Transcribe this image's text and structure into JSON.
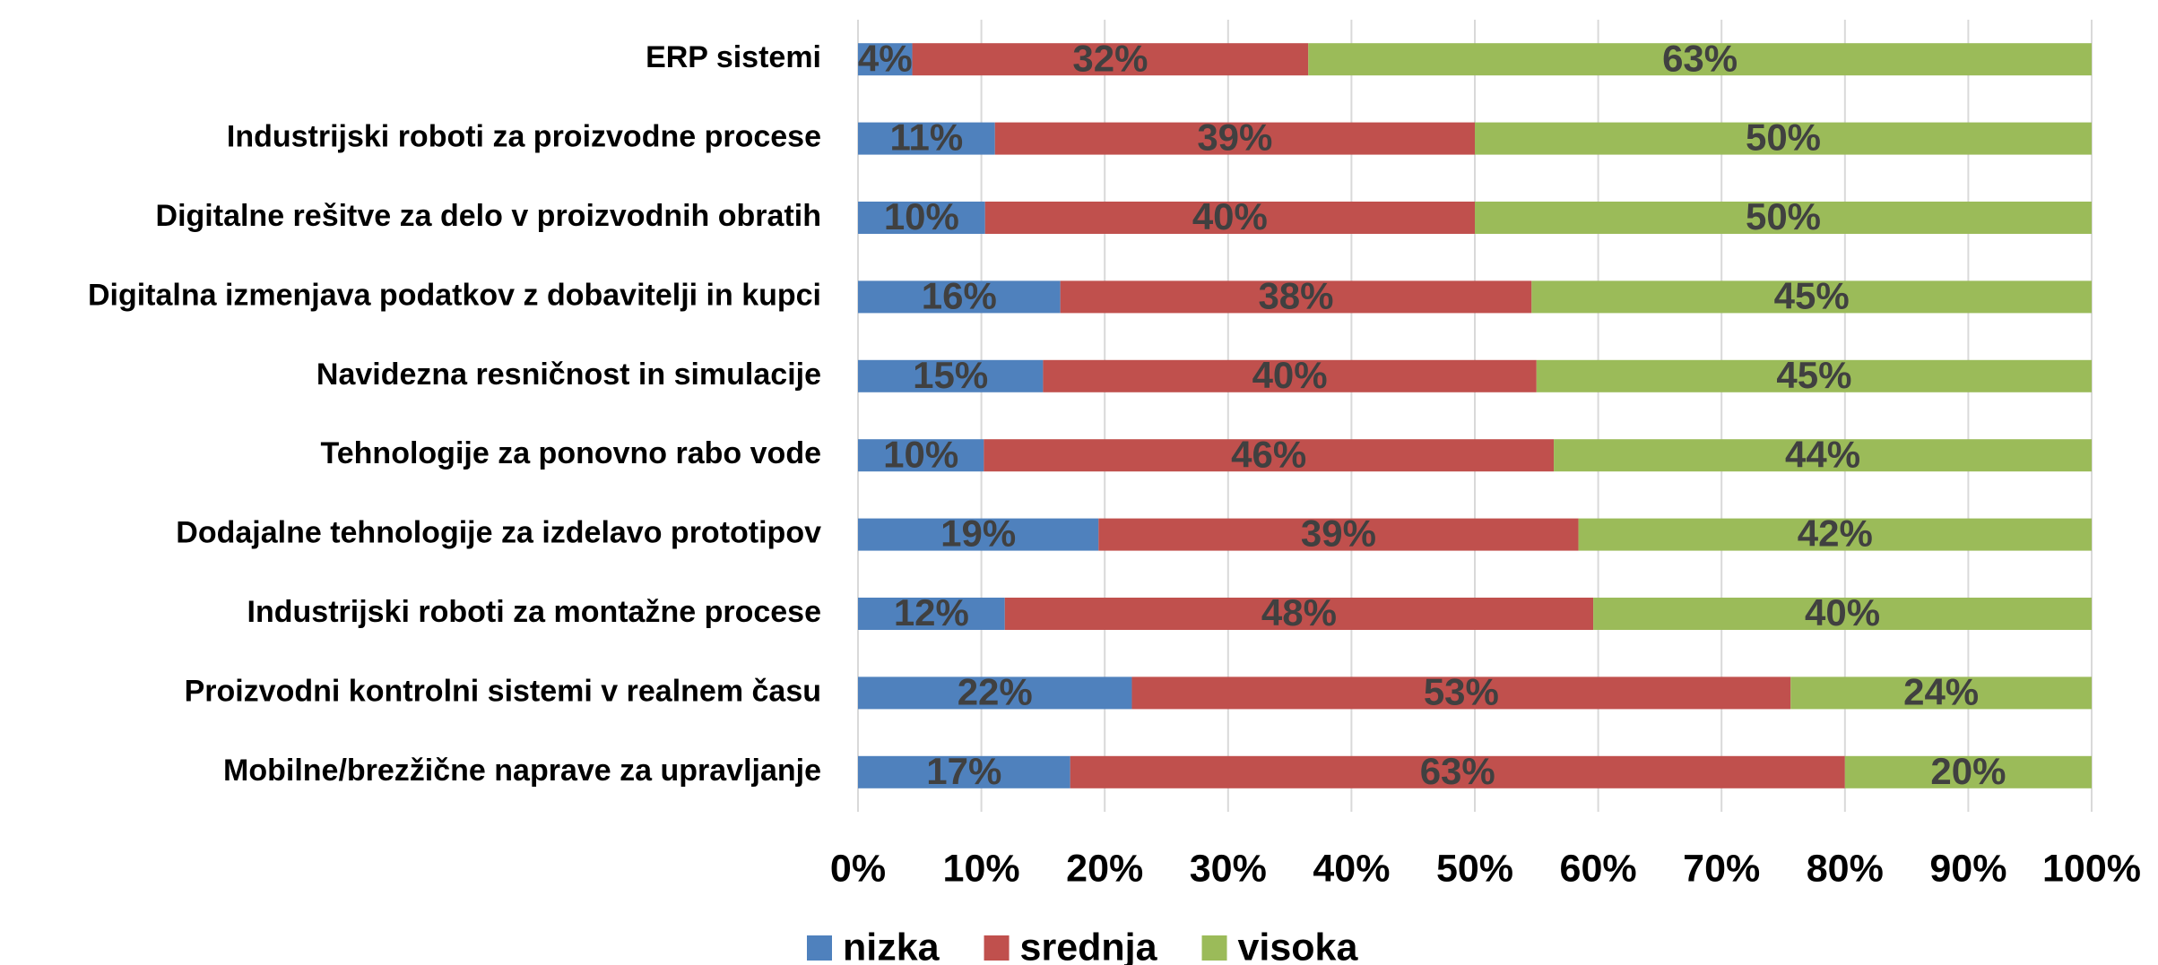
{
  "chart_data": {
    "type": "stacked_barh",
    "categories": [
      "ERP sistemi",
      "Industrijski roboti za proizvodne procese",
      "Digitalne rešitve za delo v proizvodnih obratih",
      "Digitalna izmenjava podatkov z dobavitelji in kupci",
      "Navidezna resničnost in simulacije",
      "Tehnologije za ponovno rabo vode",
      "Dodajalne tehnologije za izdelavo prototipov",
      "Industrijski roboti za montažne procese",
      "Proizvodni kontrolni sistemi v realnem času",
      "Mobilne/brezžične naprave za upravljanje"
    ],
    "series": [
      {
        "name": "nizka",
        "color": "#4f81bd",
        "values": [
          4.4,
          11.1,
          10.3,
          16.4,
          15.0,
          10.2,
          19.5,
          11.9,
          22.2,
          17.2
        ],
        "value_labels": [
          "4%",
          "11%",
          "10%",
          "16%",
          "15%",
          "10%",
          "19%",
          "12%",
          "22%",
          "17%"
        ]
      },
      {
        "name": "srednja",
        "color": "#c0504d",
        "values": [
          32.1,
          38.9,
          39.7,
          38.2,
          40.0,
          46.2,
          38.9,
          47.7,
          53.4,
          62.8
        ],
        "value_labels": [
          "32%",
          "39%",
          "40%",
          "38%",
          "40%",
          "46%",
          "39%",
          "48%",
          "53%",
          "63%"
        ]
      },
      {
        "name": "visoka",
        "color": "#9bbb59",
        "values": [
          63.5,
          50.0,
          50.0,
          45.4,
          45.0,
          43.6,
          41.6,
          40.4,
          24.4,
          20.0
        ],
        "value_labels": [
          "63%",
          "50%",
          "50%",
          "45%",
          "45%",
          "44%",
          "42%",
          "40%",
          "24%",
          "20%"
        ]
      }
    ],
    "xlim": [
      0,
      100
    ],
    "xticks": [
      {
        "value": 0,
        "label": "0%"
      },
      {
        "value": 10,
        "label": "10%"
      },
      {
        "value": 20,
        "label": "20%"
      },
      {
        "value": 30,
        "label": "30%"
      },
      {
        "value": 40,
        "label": "40%"
      },
      {
        "value": 50,
        "label": "50%"
      },
      {
        "value": 60,
        "label": "60%"
      },
      {
        "value": 70,
        "label": "70%"
      },
      {
        "value": 80,
        "label": "80%"
      },
      {
        "value": 90,
        "label": "90%"
      },
      {
        "value": 100,
        "label": "100%"
      }
    ],
    "grid": true,
    "legend": "bottom"
  }
}
